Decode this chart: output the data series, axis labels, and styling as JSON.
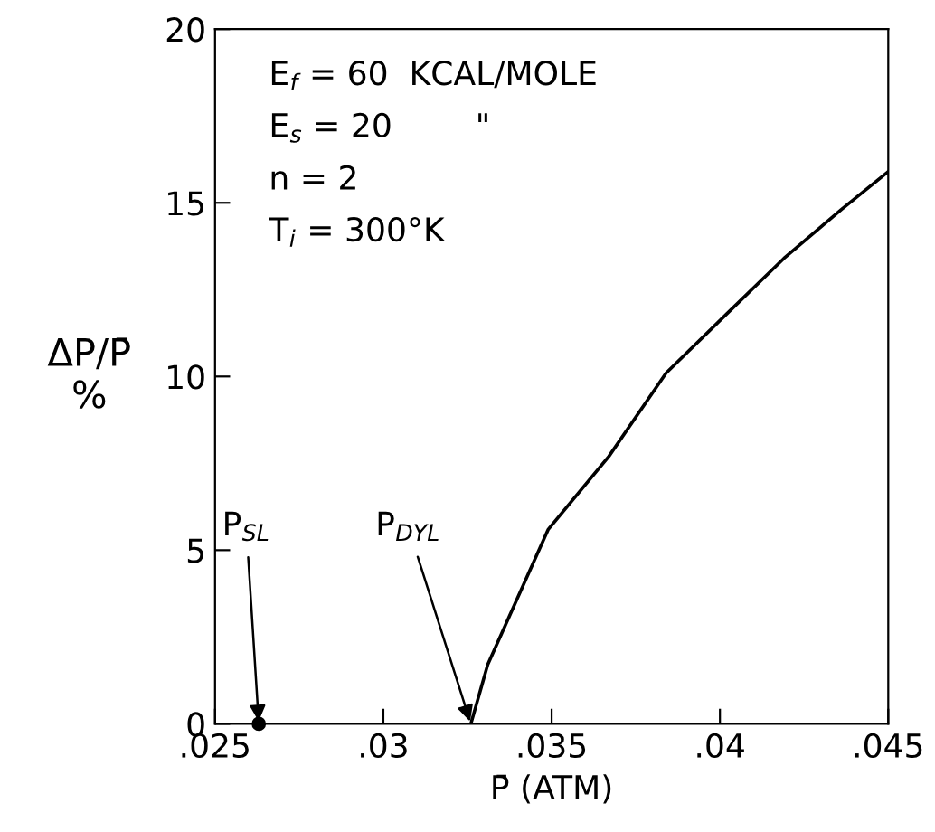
{
  "chart_data": {
    "type": "line",
    "xlabel": "P̄ (ATM)",
    "ylabel": "ΔP/P̄\n%",
    "xlim": [
      0.025,
      0.045
    ],
    "ylim": [
      0,
      20
    ],
    "xticks": [
      {
        "value": 0.025,
        "label": ".025"
      },
      {
        "value": 0.03,
        "label": ".03"
      },
      {
        "value": 0.035,
        "label": ".035"
      },
      {
        "value": 0.04,
        "label": ".04"
      },
      {
        "value": 0.045,
        "label": ".045"
      }
    ],
    "yticks": [
      0,
      5,
      10,
      15,
      20
    ],
    "grid": false,
    "series": [
      {
        "color": "#000000",
        "x": [
          0.0326,
          0.0331,
          0.0349,
          0.0367,
          0.0384,
          0.0402,
          0.0419,
          0.0436,
          0.045
        ],
        "values": [
          0,
          1.7,
          5.6,
          7.7,
          10.1,
          11.8,
          13.4,
          14.8,
          15.9
        ]
      },
      {
        "type": "scatter",
        "color": "#000000",
        "marker": "circle",
        "x": [
          0.0263
        ],
        "values": [
          0
        ]
      }
    ],
    "annotations": [
      "E$_{f}$ = 60  KCAL/MOLE",
      "E$_{s}$ = 20        \"",
      "n = 2",
      "T$_{i}$ = 300°K",
      {
        "text": "P$_{SL}$",
        "x": 0.0263,
        "y": 0
      },
      {
        "text": "P$_{DYL}$",
        "x": 0.0326,
        "y": 0
      }
    ]
  }
}
